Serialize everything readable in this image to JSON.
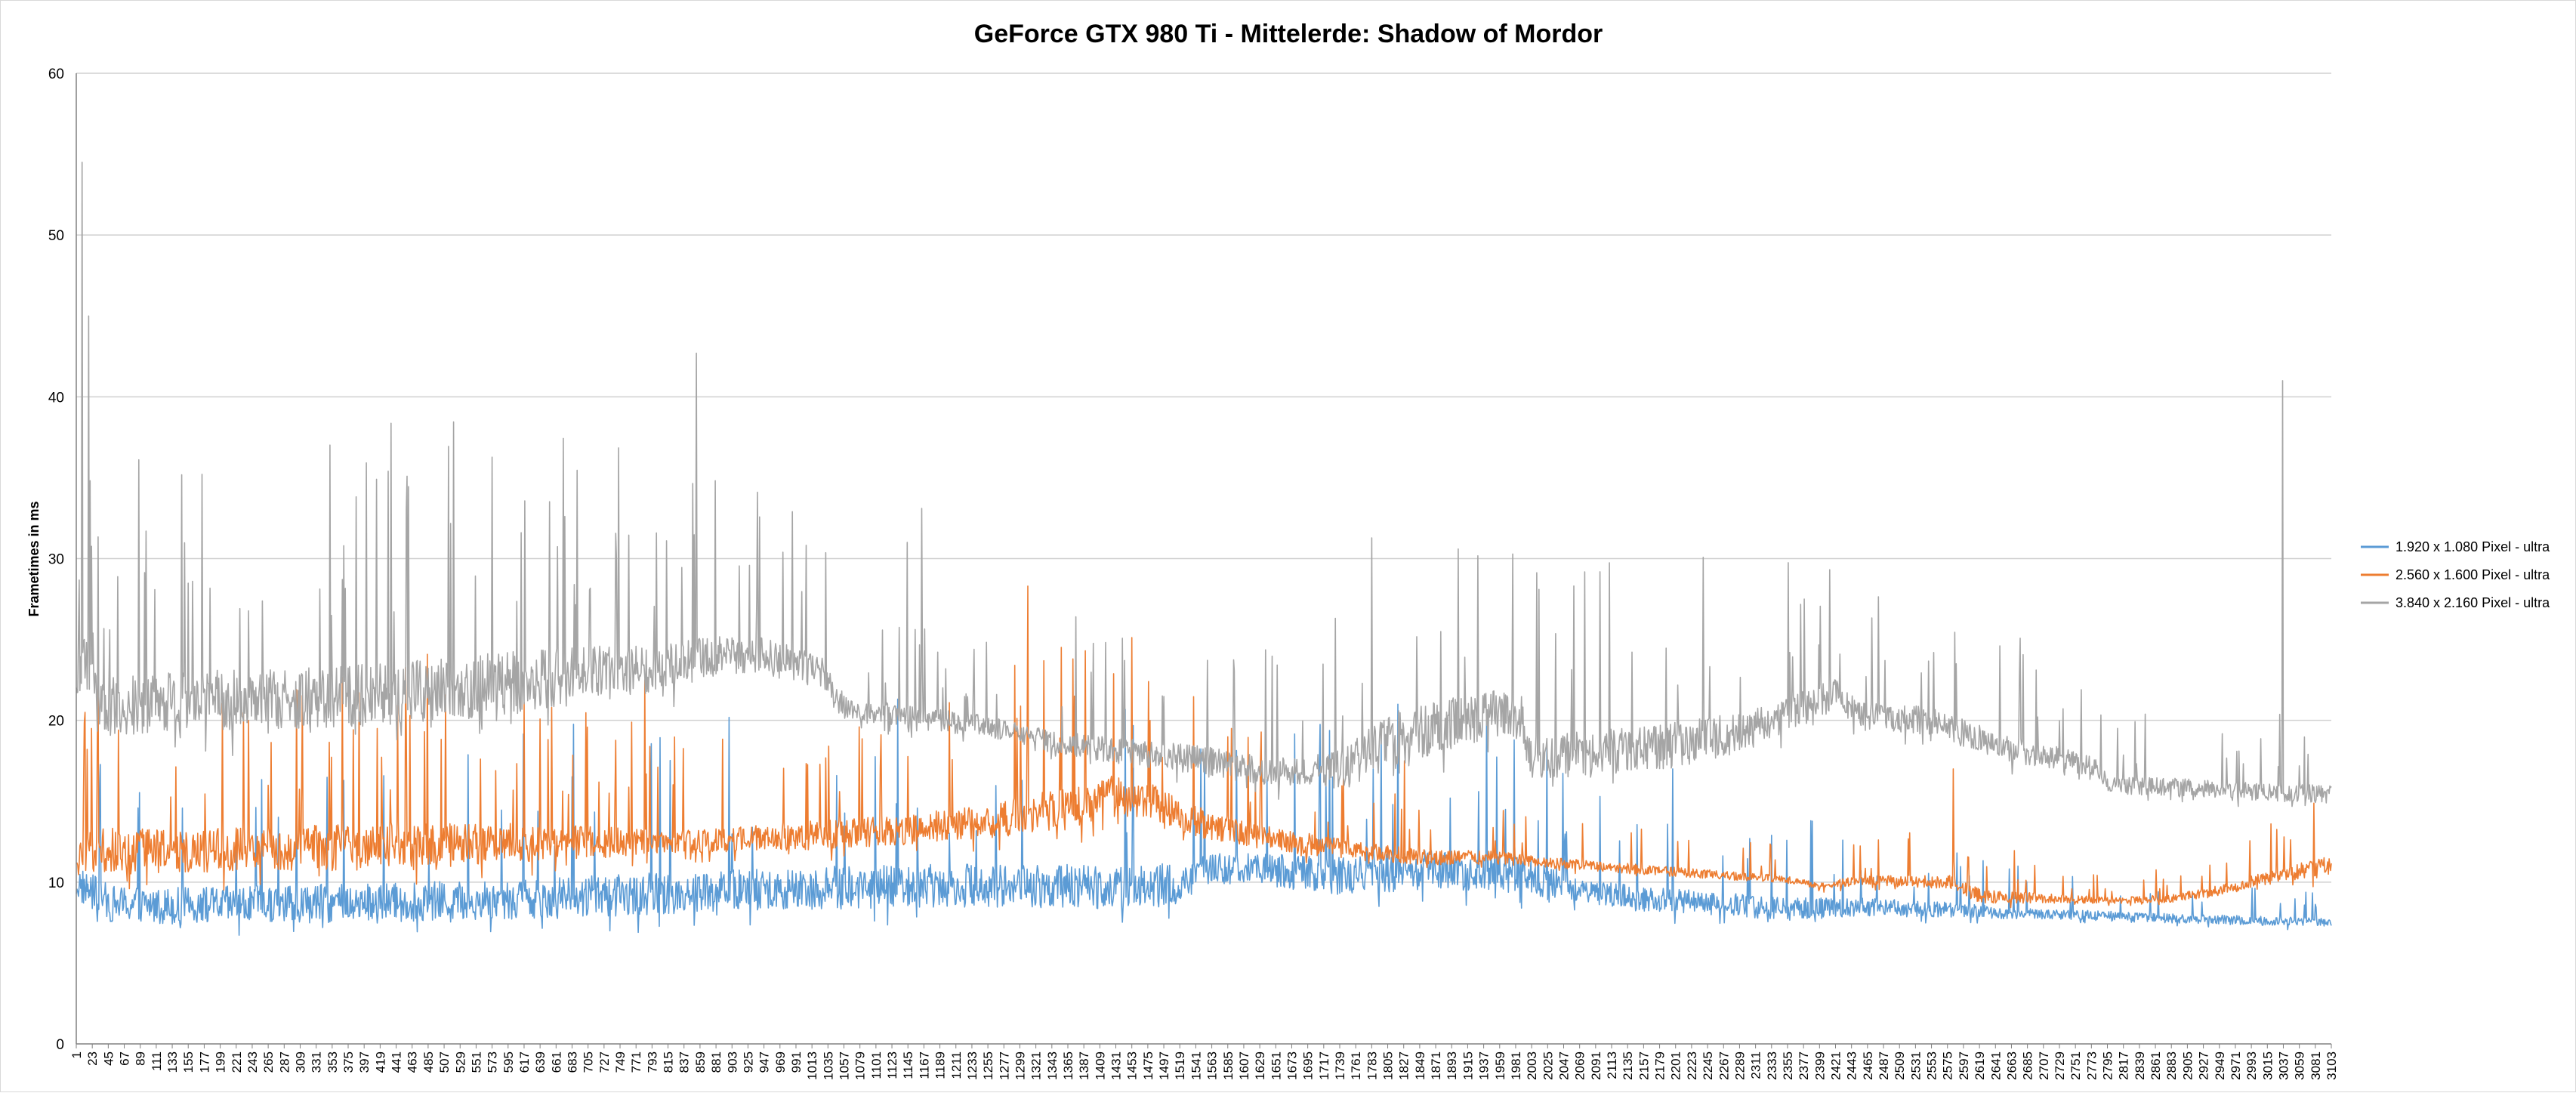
{
  "chart_data": {
    "type": "line",
    "title": "GeForce GTX 980 Ti - Mittelerde: Shadow of Mordor",
    "xlabel": "",
    "ylabel": "Frametimes in ms",
    "xlim": [
      1,
      3103
    ],
    "ylim": [
      0,
      60
    ],
    "y_ticks": [
      0,
      10,
      20,
      30,
      40,
      50,
      60
    ],
    "x_ticks": [
      1,
      23,
      45,
      67,
      89,
      111,
      133,
      155,
      177,
      199,
      221,
      243,
      265,
      287,
      309,
      331,
      353,
      375,
      397,
      419,
      441,
      463,
      485,
      507,
      529,
      551,
      573,
      595,
      617,
      639,
      661,
      683,
      705,
      727,
      749,
      771,
      793,
      815,
      837,
      859,
      881,
      903,
      925,
      947,
      969,
      991,
      1013,
      1035,
      1057,
      1079,
      1101,
      1123,
      1145,
      1167,
      1189,
      1211,
      1233,
      1255,
      1277,
      1299,
      1321,
      1343,
      1365,
      1387,
      1409,
      1431,
      1453,
      1475,
      1497,
      1519,
      1541,
      1563,
      1585,
      1607,
      1629,
      1651,
      1673,
      1695,
      1717,
      1739,
      1761,
      1783,
      1805,
      1827,
      1849,
      1871,
      1893,
      1915,
      1937,
      1959,
      1981,
      2003,
      2025,
      2047,
      2069,
      2091,
      2113,
      2135,
      2157,
      2179,
      2201,
      2223,
      2245,
      2267,
      2289,
      2311,
      2333,
      2355,
      2377,
      2399,
      2421,
      2443,
      2465,
      2487,
      2509,
      2531,
      2553,
      2575,
      2597,
      2619,
      2641,
      2663,
      2685,
      2707,
      2729,
      2751,
      2773,
      2795,
      2817,
      2839,
      2861,
      2883,
      2905,
      2927,
      2949,
      2971,
      2993,
      3015,
      3037,
      3059,
      3081,
      3103
    ],
    "grid": "horizontal",
    "legend_position": "right",
    "series": [
      {
        "name": "1.920 x 1.080 Pixel - ultra",
        "color": "#5b9bd5",
        "baseline": [
          [
            1,
            9.6
          ],
          [
            50,
            8.3
          ],
          [
            150,
            8.2
          ],
          [
            300,
            8.3
          ],
          [
            450,
            8.4
          ],
          [
            600,
            8.6
          ],
          [
            750,
            8.8
          ],
          [
            850,
            9.0
          ],
          [
            1000,
            9.2
          ],
          [
            1150,
            9.4
          ],
          [
            1300,
            9.4
          ],
          [
            1400,
            9.3
          ],
          [
            1520,
            9.4
          ],
          [
            1560,
            10.6
          ],
          [
            1650,
            10.4
          ],
          [
            1750,
            10.0
          ],
          [
            1850,
            10.4
          ],
          [
            1950,
            10.3
          ],
          [
            2050,
            9.6
          ],
          [
            2150,
            8.7
          ],
          [
            2250,
            8.5
          ],
          [
            2350,
            8.1
          ],
          [
            2450,
            8.3
          ],
          [
            2550,
            8.2
          ],
          [
            2650,
            8.0
          ],
          [
            2750,
            7.9
          ],
          [
            2850,
            7.7
          ],
          [
            2950,
            7.6
          ],
          [
            3103,
            7.4
          ]
        ],
        "spread": [
          [
            1,
            2.5
          ],
          [
            500,
            2.7
          ],
          [
            1000,
            3.0
          ],
          [
            1500,
            3.0
          ],
          [
            1560,
            2.0
          ],
          [
            1800,
            2.8
          ],
          [
            2000,
            2.5
          ],
          [
            2100,
            1.8
          ],
          [
            2400,
            1.5
          ],
          [
            2700,
            0.7
          ],
          [
            3103,
            0.6
          ]
        ],
        "spike_prob": 0.03,
        "spikes": [
          [
            1785,
            17.0
          ],
          [
            1812,
            14.8
          ],
          [
            1891,
            15.2
          ],
          [
            1930,
            15.6
          ],
          [
            1967,
            14.5
          ],
          [
            2012,
            13.8
          ],
          [
            2197,
            17.0
          ],
          [
            2303,
            12.7
          ],
          [
            2387,
            13.8
          ],
          [
            2431,
            12.6
          ]
        ]
      },
      {
        "name": "2.560 x 1.600 Pixel - ultra",
        "color": "#ed7d31",
        "baseline": [
          [
            1,
            10.8
          ],
          [
            25,
            11.6
          ],
          [
            100,
            11.5
          ],
          [
            250,
            11.6
          ],
          [
            400,
            11.8
          ],
          [
            550,
            12.0
          ],
          [
            650,
            12.1
          ],
          [
            850,
            12.3
          ],
          [
            1000,
            12.6
          ],
          [
            1150,
            13.0
          ],
          [
            1250,
            13.4
          ],
          [
            1300,
            13.8
          ],
          [
            1380,
            14.2
          ],
          [
            1420,
            15.0
          ],
          [
            1480,
            14.6
          ],
          [
            1560,
            13.2
          ],
          [
            1640,
            12.5
          ],
          [
            1750,
            11.8
          ],
          [
            1850,
            11.4
          ],
          [
            1950,
            11.4
          ],
          [
            2050,
            11.0
          ],
          [
            2150,
            10.7
          ],
          [
            2250,
            10.4
          ],
          [
            2350,
            10.1
          ],
          [
            2400,
            9.7
          ],
          [
            2450,
            10.0
          ],
          [
            2580,
            9.9
          ],
          [
            2620,
            9.0
          ],
          [
            2800,
            8.8
          ],
          [
            2880,
            8.9
          ],
          [
            2950,
            9.4
          ],
          [
            3000,
            10.0
          ],
          [
            3103,
            10.8
          ]
        ],
        "spread": [
          [
            1,
            3.0
          ],
          [
            500,
            3.2
          ],
          [
            850,
            1.6
          ],
          [
            1000,
            2.0
          ],
          [
            1200,
            2.2
          ],
          [
            1400,
            3.0
          ],
          [
            1600,
            1.8
          ],
          [
            1800,
            1.2
          ],
          [
            2000,
            0.8
          ],
          [
            2400,
            0.5
          ],
          [
            2600,
            1.0
          ],
          [
            2800,
            0.4
          ],
          [
            3000,
            0.8
          ],
          [
            3103,
            1.5
          ]
        ],
        "spike_prob": 0.045,
        "spikes": [
          [
            13,
            20.5
          ],
          [
            22,
            19.5
          ],
          [
            30,
            19.0
          ],
          [
            415,
            19.5
          ],
          [
            460,
            20.3
          ],
          [
            480,
            19.3
          ],
          [
            655,
            20.8
          ],
          [
            783,
            22.5
          ],
          [
            1310,
            28.3
          ],
          [
            1372,
            23.8
          ],
          [
            1374,
            21.5
          ],
          [
            1389,
            24.3
          ],
          [
            1476,
            22.4
          ],
          [
            1590,
            19.5
          ],
          [
            1828,
            17.5
          ],
          [
            2583,
            17.0
          ],
          [
            3020,
            13.6
          ],
          [
            3038,
            12.8
          ]
        ]
      },
      {
        "name": "3.840 x 2.160 Pixel - ultra",
        "color": "#a5a5a5",
        "baseline": [
          [
            1,
            20.5
          ],
          [
            12,
            23.5
          ],
          [
            30,
            20.2
          ],
          [
            100,
            20.5
          ],
          [
            200,
            20.7
          ],
          [
            300,
            20.8
          ],
          [
            400,
            21.0
          ],
          [
            500,
            21.3
          ],
          [
            600,
            21.7
          ],
          [
            700,
            22.3
          ],
          [
            800,
            22.8
          ],
          [
            860,
            23.5
          ],
          [
            950,
            23.6
          ],
          [
            1030,
            22.6
          ],
          [
            1060,
            20.5
          ],
          [
            1150,
            20.0
          ],
          [
            1250,
            19.5
          ],
          [
            1350,
            18.4
          ],
          [
            1450,
            17.8
          ],
          [
            1550,
            17.3
          ],
          [
            1650,
            16.5
          ],
          [
            1750,
            16.7
          ],
          [
            1800,
            18.0
          ],
          [
            1870,
            19.1
          ],
          [
            1950,
            20.0
          ],
          [
            1990,
            19.8
          ],
          [
            2000,
            17.3
          ],
          [
            2100,
            17.6
          ],
          [
            2200,
            18.0
          ],
          [
            2300,
            19.0
          ],
          [
            2380,
            20.5
          ],
          [
            2420,
            21.3
          ],
          [
            2450,
            20.1
          ],
          [
            2550,
            19.7
          ],
          [
            2650,
            18.1
          ],
          [
            2700,
            17.6
          ],
          [
            2780,
            17.0
          ],
          [
            2800,
            15.8
          ],
          [
            2900,
            15.7
          ],
          [
            3000,
            15.4
          ],
          [
            3103,
            15.3
          ]
        ],
        "spread": [
          [
            1,
            4.0
          ],
          [
            300,
            4.2
          ],
          [
            600,
            4.5
          ],
          [
            850,
            3.0
          ],
          [
            1000,
            2.5
          ],
          [
            1060,
            1.6
          ],
          [
            1300,
            1.4
          ],
          [
            1500,
            2.0
          ],
          [
            1700,
            2.0
          ],
          [
            1800,
            4.0
          ],
          [
            2000,
            3.0
          ],
          [
            2200,
            3.2
          ],
          [
            2450,
            2.0
          ],
          [
            2700,
            1.8
          ],
          [
            2800,
            1.2
          ],
          [
            3103,
            1.3
          ]
        ],
        "spike_prob": 0.05,
        "spikes": [
          [
            4,
            25.5
          ],
          [
            9,
            54.5
          ],
          [
            18,
            45.0
          ],
          [
            24,
            25.4
          ],
          [
            97,
            31.7
          ],
          [
            161,
            28.6
          ],
          [
            369,
            30.8
          ],
          [
            613,
            31.6
          ],
          [
            686,
            28.4
          ],
          [
            813,
            31.1
          ],
          [
            854,
            42.7
          ],
          [
            938,
            34.1
          ],
          [
            986,
            32.9
          ],
          [
            1144,
            31.0
          ],
          [
            1164,
            33.1
          ],
          [
            1376,
            26.4
          ],
          [
            1911,
            23.9
          ],
          [
            2378,
            27.5
          ],
          [
            2587,
            23.5
          ],
          [
            2759,
            21.9
          ],
          [
            3036,
            41.0
          ],
          [
            3071,
            17.9
          ]
        ]
      }
    ]
  }
}
